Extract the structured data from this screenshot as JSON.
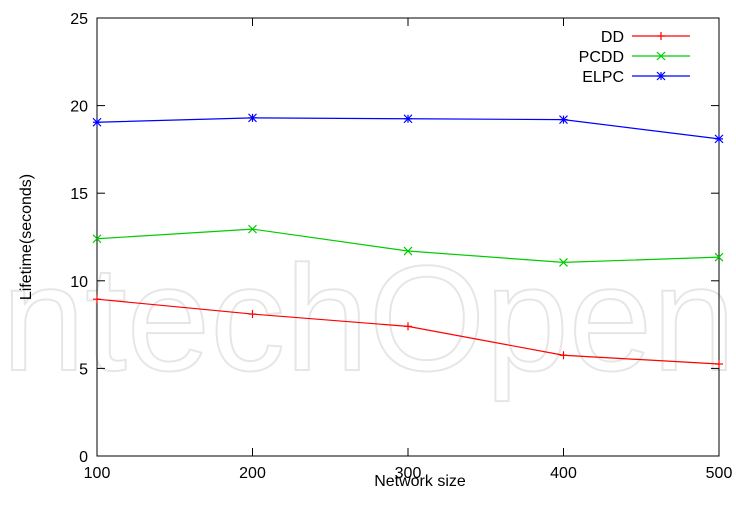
{
  "watermark": "IntechOpen",
  "chart_data": {
    "type": "line",
    "x": [
      100,
      200,
      300,
      400,
      500
    ],
    "xlabel": "Network size",
    "ylabel": "Lifetime(seconds)",
    "xlim": [
      100,
      500
    ],
    "ylim": [
      0,
      25
    ],
    "xticks": [
      100,
      200,
      300,
      400,
      500
    ],
    "yticks": [
      0,
      5,
      10,
      15,
      20,
      25
    ],
    "grid": false,
    "legend_position": "top-right",
    "series": [
      {
        "name": "DD",
        "color": "#ff0000",
        "marker": "plus",
        "values": [
          8.95,
          8.1,
          7.4,
          5.75,
          5.25
        ]
      },
      {
        "name": "PCDD",
        "color": "#00cc00",
        "marker": "cross",
        "values": [
          12.4,
          12.95,
          11.7,
          11.05,
          11.35
        ]
      },
      {
        "name": "ELPC",
        "color": "#0000ff",
        "marker": "star",
        "values": [
          19.05,
          19.3,
          19.25,
          19.2,
          18.1
        ]
      }
    ]
  }
}
